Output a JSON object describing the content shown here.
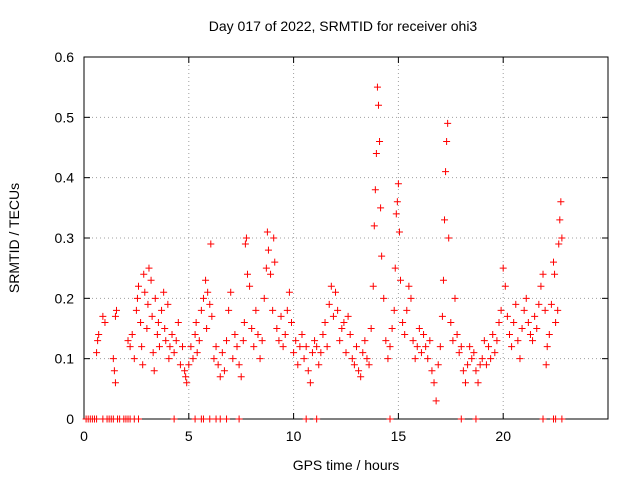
{
  "chart_data": {
    "type": "scatter",
    "title": "Day 017 of 2022, SRMTID for receiver ohi3",
    "xlabel": "GPS time / hours",
    "ylabel": "SRMTID / TECUs",
    "xlim": [
      0,
      25
    ],
    "ylim": [
      0,
      0.6
    ],
    "xticks": [
      "0",
      "5",
      "10",
      "15",
      "20"
    ],
    "yticks": [
      "0",
      "0.1",
      "0.2",
      "0.3",
      "0.4",
      "0.5",
      "0.6"
    ],
    "grid": true,
    "marker": "+",
    "color": "#ff0000",
    "series": [
      {
        "name": "SRMTID",
        "points": [
          [
            0.6,
            0.11
          ],
          [
            0.65,
            0.13
          ],
          [
            0.7,
            0.14
          ],
          [
            0.9,
            0.17
          ],
          [
            1.0,
            0.16
          ],
          [
            1.4,
            0.1
          ],
          [
            1.45,
            0.08
          ],
          [
            1.5,
            0.06
          ],
          [
            1.5,
            0.17
          ],
          [
            1.55,
            0.18
          ],
          [
            2.1,
            0.13
          ],
          [
            2.2,
            0.12
          ],
          [
            2.3,
            0.14
          ],
          [
            2.4,
            0.1
          ],
          [
            2.5,
            0.18
          ],
          [
            2.55,
            0.2
          ],
          [
            2.6,
            0.22
          ],
          [
            2.7,
            0.16
          ],
          [
            2.75,
            0.12
          ],
          [
            2.8,
            0.09
          ],
          [
            2.85,
            0.24
          ],
          [
            2.9,
            0.21
          ],
          [
            3.0,
            0.15
          ],
          [
            3.05,
            0.19
          ],
          [
            3.1,
            0.25
          ],
          [
            3.2,
            0.23
          ],
          [
            3.25,
            0.17
          ],
          [
            3.3,
            0.11
          ],
          [
            3.35,
            0.08
          ],
          [
            3.4,
            0.2
          ],
          [
            3.5,
            0.14
          ],
          [
            3.55,
            0.16
          ],
          [
            3.6,
            0.12
          ],
          [
            3.7,
            0.18
          ],
          [
            3.8,
            0.21
          ],
          [
            3.85,
            0.15
          ],
          [
            3.9,
            0.13
          ],
          [
            4.0,
            0.19
          ],
          [
            4.05,
            0.1
          ],
          [
            4.1,
            0.12
          ],
          [
            4.2,
            0.14
          ],
          [
            4.3,
            0.11
          ],
          [
            4.4,
            0.13
          ],
          [
            4.5,
            0.16
          ],
          [
            4.6,
            0.09
          ],
          [
            4.7,
            0.12
          ],
          [
            4.8,
            0.08
          ],
          [
            4.85,
            0.07
          ],
          [
            4.9,
            0.06
          ],
          [
            5.0,
            0.09
          ],
          [
            5.1,
            0.12
          ],
          [
            5.2,
            0.1
          ],
          [
            5.3,
            0.14
          ],
          [
            5.35,
            0.16
          ],
          [
            5.4,
            0.11
          ],
          [
            5.5,
            0.13
          ],
          [
            5.6,
            0.18
          ],
          [
            5.7,
            0.2
          ],
          [
            5.8,
            0.23
          ],
          [
            5.85,
            0.15
          ],
          [
            5.9,
            0.21
          ],
          [
            6.0,
            0.19
          ],
          [
            6.05,
            0.29
          ],
          [
            6.1,
            0.17
          ],
          [
            6.2,
            0.1
          ],
          [
            6.3,
            0.12
          ],
          [
            6.4,
            0.09
          ],
          [
            6.5,
            0.07
          ],
          [
            6.6,
            0.11
          ],
          [
            6.7,
            0.08
          ],
          [
            6.8,
            0.13
          ],
          [
            6.9,
            0.18
          ],
          [
            7.0,
            0.21
          ],
          [
            7.1,
            0.1
          ],
          [
            7.2,
            0.14
          ],
          [
            7.3,
            0.12
          ],
          [
            7.4,
            0.09
          ],
          [
            7.5,
            0.07
          ],
          [
            7.6,
            0.13
          ],
          [
            7.65,
            0.16
          ],
          [
            7.7,
            0.29
          ],
          [
            7.75,
            0.3
          ],
          [
            7.8,
            0.24
          ],
          [
            7.9,
            0.22
          ],
          [
            8.0,
            0.15
          ],
          [
            8.1,
            0.12
          ],
          [
            8.2,
            0.18
          ],
          [
            8.3,
            0.14
          ],
          [
            8.4,
            0.1
          ],
          [
            8.5,
            0.13
          ],
          [
            8.6,
            0.2
          ],
          [
            8.7,
            0.25
          ],
          [
            8.75,
            0.31
          ],
          [
            8.8,
            0.28
          ],
          [
            8.9,
            0.24
          ],
          [
            9.0,
            0.18
          ],
          [
            9.05,
            0.3
          ],
          [
            9.1,
            0.26
          ],
          [
            9.2,
            0.15
          ],
          [
            9.3,
            0.13
          ],
          [
            9.4,
            0.17
          ],
          [
            9.5,
            0.12
          ],
          [
            9.6,
            0.14
          ],
          [
            9.7,
            0.18
          ],
          [
            9.8,
            0.21
          ],
          [
            9.9,
            0.16
          ],
          [
            10.0,
            0.11
          ],
          [
            10.1,
            0.13
          ],
          [
            10.2,
            0.09
          ],
          [
            10.3,
            0.12
          ],
          [
            10.4,
            0.14
          ],
          [
            10.5,
            0.1
          ],
          [
            10.6,
            0.12
          ],
          [
            10.7,
            0.08
          ],
          [
            10.8,
            0.06
          ],
          [
            10.9,
            0.11
          ],
          [
            11.0,
            0.13
          ],
          [
            11.1,
            0.12
          ],
          [
            11.2,
            0.09
          ],
          [
            11.3,
            0.11
          ],
          [
            11.4,
            0.14
          ],
          [
            11.5,
            0.16
          ],
          [
            11.6,
            0.12
          ],
          [
            11.7,
            0.19
          ],
          [
            11.8,
            0.22
          ],
          [
            11.9,
            0.17
          ],
          [
            12.0,
            0.21
          ],
          [
            12.1,
            0.18
          ],
          [
            12.2,
            0.13
          ],
          [
            12.3,
            0.15
          ],
          [
            12.4,
            0.16
          ],
          [
            12.5,
            0.11
          ],
          [
            12.6,
            0.17
          ],
          [
            12.7,
            0.14
          ],
          [
            12.8,
            0.1
          ],
          [
            12.9,
            0.09
          ],
          [
            13.0,
            0.12
          ],
          [
            13.1,
            0.08
          ],
          [
            13.2,
            0.07
          ],
          [
            13.3,
            0.11
          ],
          [
            13.4,
            0.13
          ],
          [
            13.5,
            0.1
          ],
          [
            13.6,
            0.09
          ],
          [
            13.7,
            0.15
          ],
          [
            13.8,
            0.22
          ],
          [
            13.85,
            0.32
          ],
          [
            13.9,
            0.38
          ],
          [
            13.95,
            0.44
          ],
          [
            14.0,
            0.55
          ],
          [
            14.05,
            0.52
          ],
          [
            14.1,
            0.46
          ],
          [
            14.15,
            0.35
          ],
          [
            14.2,
            0.27
          ],
          [
            14.3,
            0.2
          ],
          [
            14.4,
            0.13
          ],
          [
            14.5,
            0.1
          ],
          [
            14.6,
            0.12
          ],
          [
            14.7,
            0.15
          ],
          [
            14.8,
            0.18
          ],
          [
            14.85,
            0.25
          ],
          [
            14.9,
            0.34
          ],
          [
            14.95,
            0.36
          ],
          [
            15.0,
            0.39
          ],
          [
            15.05,
            0.31
          ],
          [
            15.1,
            0.23
          ],
          [
            15.2,
            0.16
          ],
          [
            15.3,
            0.14
          ],
          [
            15.4,
            0.18
          ],
          [
            15.5,
            0.22
          ],
          [
            15.6,
            0.2
          ],
          [
            15.7,
            0.13
          ],
          [
            15.8,
            0.1
          ],
          [
            15.9,
            0.12
          ],
          [
            16.0,
            0.15
          ],
          [
            16.1,
            0.11
          ],
          [
            16.2,
            0.14
          ],
          [
            16.3,
            0.12
          ],
          [
            16.4,
            0.1
          ],
          [
            16.5,
            0.13
          ],
          [
            16.6,
            0.08
          ],
          [
            16.7,
            0.06
          ],
          [
            16.8,
            0.03
          ],
          [
            16.9,
            0.09
          ],
          [
            17.0,
            0.12
          ],
          [
            17.1,
            0.17
          ],
          [
            17.15,
            0.23
          ],
          [
            17.2,
            0.33
          ],
          [
            17.25,
            0.41
          ],
          [
            17.3,
            0.46
          ],
          [
            17.35,
            0.49
          ],
          [
            17.4,
            0.3
          ],
          [
            17.5,
            0.16
          ],
          [
            17.6,
            0.13
          ],
          [
            17.7,
            0.2
          ],
          [
            17.8,
            0.14
          ],
          [
            17.9,
            0.11
          ],
          [
            18.0,
            0.12
          ],
          [
            18.1,
            0.08
          ],
          [
            18.2,
            0.06
          ],
          [
            18.3,
            0.09
          ],
          [
            18.4,
            0.12
          ],
          [
            18.5,
            0.1
          ],
          [
            18.6,
            0.11
          ],
          [
            18.7,
            0.08
          ],
          [
            18.8,
            0.06
          ],
          [
            18.9,
            0.09
          ],
          [
            19.0,
            0.1
          ],
          [
            19.1,
            0.13
          ],
          [
            19.2,
            0.09
          ],
          [
            19.3,
            0.12
          ],
          [
            19.4,
            0.1
          ],
          [
            19.5,
            0.14
          ],
          [
            19.6,
            0.11
          ],
          [
            19.7,
            0.13
          ],
          [
            19.8,
            0.16
          ],
          [
            19.9,
            0.18
          ],
          [
            20.0,
            0.25
          ],
          [
            20.1,
            0.22
          ],
          [
            20.2,
            0.17
          ],
          [
            20.3,
            0.14
          ],
          [
            20.4,
            0.12
          ],
          [
            20.5,
            0.16
          ],
          [
            20.6,
            0.19
          ],
          [
            20.7,
            0.13
          ],
          [
            20.8,
            0.1
          ],
          [
            20.9,
            0.15
          ],
          [
            21.0,
            0.18
          ],
          [
            21.1,
            0.2
          ],
          [
            21.2,
            0.16
          ],
          [
            21.3,
            0.14
          ],
          [
            21.4,
            0.13
          ],
          [
            21.5,
            0.17
          ],
          [
            21.6,
            0.15
          ],
          [
            21.7,
            0.19
          ],
          [
            21.8,
            0.22
          ],
          [
            21.9,
            0.24
          ],
          [
            22.0,
            0.18
          ],
          [
            22.05,
            0.09
          ],
          [
            22.1,
            0.12
          ],
          [
            22.2,
            0.14
          ],
          [
            22.3,
            0.19
          ],
          [
            22.4,
            0.26
          ],
          [
            22.45,
            0.24
          ],
          [
            22.5,
            0.16
          ],
          [
            22.6,
            0.18
          ],
          [
            22.65,
            0.29
          ],
          [
            22.7,
            0.33
          ],
          [
            22.75,
            0.36
          ],
          [
            22.8,
            0.3
          ]
        ],
        "zero_points": [
          0.1,
          0.2,
          0.3,
          0.4,
          0.5,
          0.6,
          0.9,
          1.1,
          1.2,
          1.3,
          1.4,
          1.6,
          1.7,
          1.9,
          2.0,
          2.1,
          2.2,
          2.4,
          2.6,
          4.3,
          5.3,
          5.6,
          5.7,
          6.0,
          6.3,
          6.5,
          6.8,
          7.4,
          10.6,
          11.1,
          14.6,
          18.0,
          18.7,
          21.9,
          22.4,
          22.5,
          22.8
        ]
      }
    ]
  }
}
